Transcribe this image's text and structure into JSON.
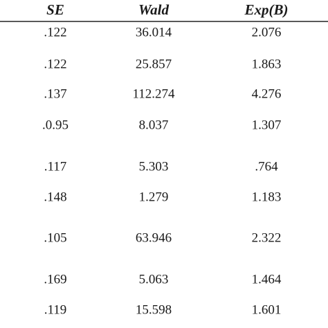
{
  "table": {
    "header": [
      "SE",
      "Wald",
      "Exp(B)"
    ],
    "rows": [
      [
        ".122",
        "36.014",
        "2.076"
      ],
      [
        ".122",
        "25.857",
        "1.863"
      ],
      [
        ".137",
        "112.274",
        "4.276"
      ],
      [
        ".0.95",
        "8.037",
        "1.307"
      ],
      [
        ".117",
        "5.303",
        ".764"
      ],
      [
        ".148",
        "1.279",
        "1.183"
      ],
      [
        ".105",
        "63.946",
        "2.322"
      ],
      [
        ".169",
        "5.063",
        "1.464"
      ],
      [
        ".119",
        "15.598",
        "1.601"
      ]
    ]
  }
}
